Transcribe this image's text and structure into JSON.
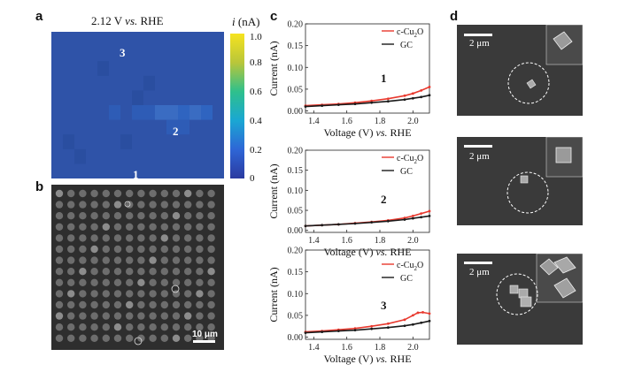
{
  "panels": {
    "a": {
      "label": "a",
      "title_prefix": "2.12 V",
      "title_vs": "vs.",
      "title_suffix": "RHE",
      "colorbar_symbol": "i",
      "colorbar_unit": "(nA)",
      "colorbar_ticks": [
        "1.0",
        "0.8",
        "0.6",
        "0.4",
        "0.2",
        "0"
      ],
      "site_labels": [
        "3",
        "2",
        "1"
      ]
    },
    "b": {
      "label": "b",
      "scalebar_text": "10 μm"
    },
    "c": {
      "label": "c"
    },
    "d": {
      "label": "d",
      "scalebar_texts": [
        "2 μm",
        "2 μm",
        "2 μm"
      ]
    }
  },
  "colors": {
    "cuo": "#e8392e",
    "gc": "#1a1a1a",
    "map_base": "#2f53a8"
  },
  "chart_data": [
    {
      "type": "line",
      "plot_id": "1",
      "xlabel": "Voltage (V)",
      "xlabel_vs": "vs.",
      "xlabel_ref": "RHE",
      "ylabel": "Current (nA)",
      "xlim": [
        1.35,
        2.1
      ],
      "ylim": [
        -0.005,
        0.2
      ],
      "xticks": [
        "1.4",
        "1.6",
        "1.8",
        "2.0"
      ],
      "yticks": [
        "0.00",
        "0.05",
        "0.10",
        "0.15",
        "0.20"
      ],
      "legend": [
        "c-Cu",
        "2",
        "O",
        "GC"
      ],
      "series": [
        {
          "name": "c-Cu2O",
          "x": [
            1.35,
            1.45,
            1.55,
            1.65,
            1.75,
            1.85,
            1.95,
            2.0,
            2.05,
            2.1
          ],
          "values": [
            0.012,
            0.014,
            0.016,
            0.019,
            0.023,
            0.028,
            0.035,
            0.04,
            0.047,
            0.055
          ]
        },
        {
          "name": "GC",
          "x": [
            1.35,
            1.45,
            1.55,
            1.65,
            1.75,
            1.85,
            1.95,
            2.0,
            2.05,
            2.1
          ],
          "values": [
            0.01,
            0.012,
            0.014,
            0.016,
            0.019,
            0.022,
            0.026,
            0.029,
            0.032,
            0.036
          ]
        }
      ]
    },
    {
      "type": "line",
      "plot_id": "2",
      "xlabel": "Voltage (V)",
      "xlabel_vs": "vs.",
      "xlabel_ref": "RHE",
      "ylabel": "Current (nA)",
      "xlim": [
        1.35,
        2.1
      ],
      "ylim": [
        -0.005,
        0.2
      ],
      "xticks": [
        "1.4",
        "1.6",
        "1.8",
        "2.0"
      ],
      "yticks": [
        "0.00",
        "0.05",
        "0.10",
        "0.15",
        "0.20"
      ],
      "legend": [
        "c-Cu",
        "2",
        "O",
        "GC"
      ],
      "series": [
        {
          "name": "c-Cu2O",
          "x": [
            1.35,
            1.45,
            1.55,
            1.65,
            1.75,
            1.85,
            1.95,
            2.0,
            2.05,
            2.1
          ],
          "values": [
            0.011,
            0.013,
            0.015,
            0.018,
            0.021,
            0.025,
            0.031,
            0.036,
            0.042,
            0.048
          ]
        },
        {
          "name": "GC",
          "x": [
            1.35,
            1.45,
            1.55,
            1.65,
            1.75,
            1.85,
            1.95,
            2.0,
            2.05,
            2.1
          ],
          "values": [
            0.011,
            0.013,
            0.015,
            0.017,
            0.02,
            0.023,
            0.027,
            0.03,
            0.033,
            0.036
          ]
        }
      ]
    },
    {
      "type": "line",
      "plot_id": "3",
      "xlabel": "Voltage (V)",
      "xlabel_vs": "vs.",
      "xlabel_ref": "RHE",
      "ylabel": "Current (nA)",
      "xlim": [
        1.35,
        2.1
      ],
      "ylim": [
        -0.005,
        0.2
      ],
      "xticks": [
        "1.4",
        "1.6",
        "1.8",
        "2.0"
      ],
      "yticks": [
        "0.00",
        "0.05",
        "0.10",
        "0.15",
        "0.20"
      ],
      "legend": [
        "c-Cu",
        "2",
        "O",
        "GC"
      ],
      "series": [
        {
          "name": "c-Cu2O",
          "x": [
            1.35,
            1.45,
            1.55,
            1.65,
            1.75,
            1.85,
            1.95,
            2.0,
            2.03,
            2.06,
            2.1
          ],
          "values": [
            0.012,
            0.014,
            0.017,
            0.02,
            0.025,
            0.031,
            0.04,
            0.05,
            0.056,
            0.057,
            0.054
          ]
        },
        {
          "name": "GC",
          "x": [
            1.35,
            1.45,
            1.55,
            1.65,
            1.75,
            1.85,
            1.95,
            2.0,
            2.05,
            2.1
          ],
          "values": [
            0.01,
            0.012,
            0.014,
            0.016,
            0.019,
            0.022,
            0.026,
            0.029,
            0.033,
            0.037
          ]
        }
      ]
    }
  ]
}
